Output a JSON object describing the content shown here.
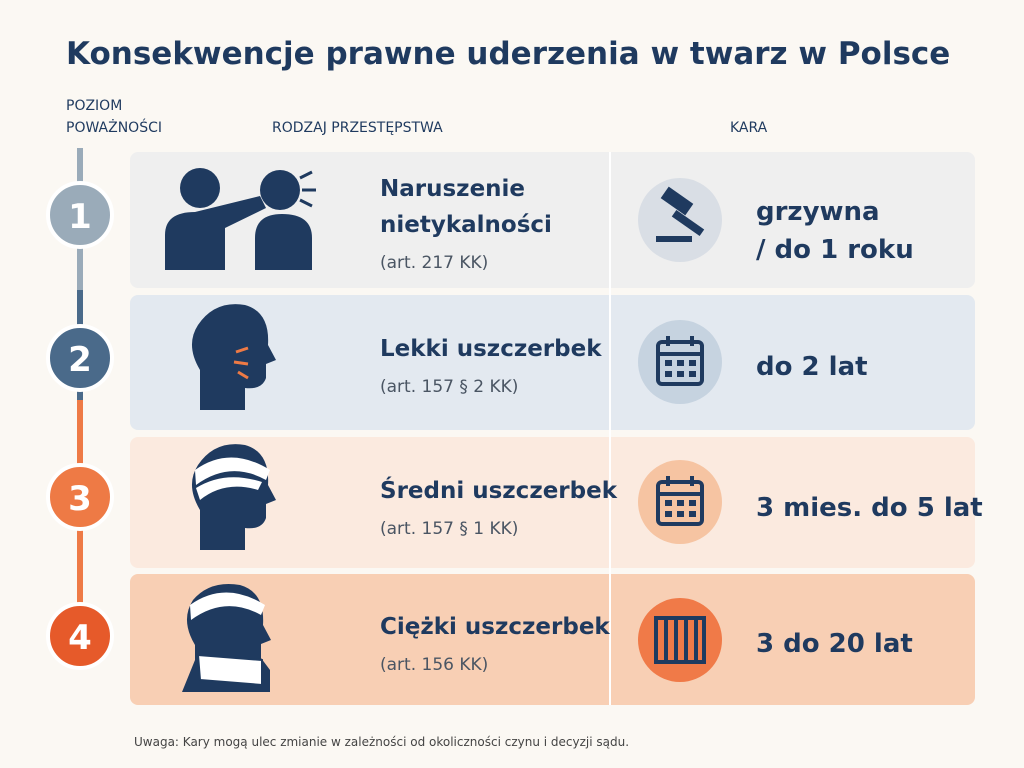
{
  "header": {
    "title": "Konsekwencje prawne uderzenia w twarz w Polsce"
  },
  "columns": {
    "level": [
      "POZIOM",
      "POWAŻNOŚCI"
    ],
    "offense": "RODZAJ PRZESTĘPSTWA",
    "penalty": "KARA"
  },
  "rows": [
    {
      "level": "1",
      "offense": [
        "Naruszenie",
        "nietykalności"
      ],
      "article": "(art. 217 KK)",
      "penalty": [
        "grzywna",
        "/ do 1 roku"
      ]
    },
    {
      "level": "2",
      "offense": [
        "Lekki uszczerbek"
      ],
      "article": "(art. 157 § 2 KK)",
      "penalty": [
        "do 2 lat"
      ]
    },
    {
      "level": "3",
      "offense": [
        "Średni uszczerbek"
      ],
      "article": "(art. 157 § 1 KK)",
      "penalty": [
        "3 mies. do 5 lat"
      ]
    },
    {
      "level": "4",
      "offense": [
        "Ciężki uszczerbek"
      ],
      "article": "(art. 156 KK)",
      "penalty": [
        "3 do 20 lat"
      ]
    }
  ],
  "footnote": "Uwaga: Kary mogą ulec zmianie w zależności od okoliczności czynu i decyzji sądu."
}
